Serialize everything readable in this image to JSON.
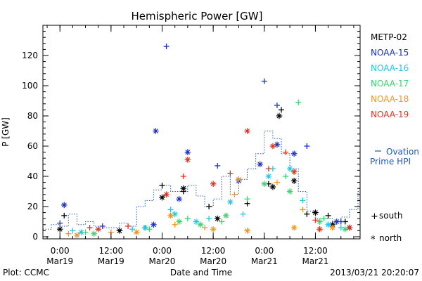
{
  "chart_data": {
    "type": "scatter",
    "title": "Hemispheric Power [GW]",
    "xlabel": "Date and Time",
    "ylabel": "P [GW]",
    "ylim": [
      0,
      140
    ],
    "xlim": [
      "2013-03-18T20:00",
      "2013-03-21T22:30"
    ],
    "x_tick_labels": [
      {
        "time": "0:00",
        "date": "Mar19",
        "at": "2013-03-19T00:00"
      },
      {
        "time": "12:00",
        "date": "Mar19",
        "at": "2013-03-19T12:00"
      },
      {
        "time": "0:00",
        "date": "Mar20",
        "at": "2013-03-20T00:00"
      },
      {
        "time": "12:00",
        "date": "Mar20",
        "at": "2013-03-20T12:00"
      },
      {
        "time": "0:00",
        "date": "Mar21",
        "at": "2013-03-21T00:00"
      },
      {
        "time": "12:00",
        "date": "Mar21",
        "at": "2013-03-21T12:00"
      }
    ],
    "y_ticks": [
      0,
      20,
      40,
      60,
      80,
      100,
      120
    ],
    "legend_position": "right",
    "series": [
      {
        "name": "METP-02",
        "color": "#000000",
        "south": [
          [
            "2013-03-19T01:00",
            14
          ],
          [
            "2013-03-19T20:00",
            6
          ],
          [
            "2013-03-20T00:00",
            34
          ],
          [
            "2013-03-20T05:00",
            30
          ],
          [
            "2013-03-20T11:00",
            20
          ],
          [
            "2013-03-20T20:00",
            22
          ],
          [
            "2013-03-21T01:00",
            35
          ],
          [
            "2013-03-21T04:00",
            84
          ],
          [
            "2013-03-21T10:00",
            15
          ],
          [
            "2013-03-21T15:00",
            14
          ],
          [
            "2013-03-21T19:00",
            10
          ]
        ],
        "north": [
          [
            "2013-03-19T00:00",
            5
          ],
          [
            "2013-03-19T14:00",
            4
          ],
          [
            "2013-03-20T00:00",
            26
          ],
          [
            "2013-03-20T05:00",
            32
          ],
          [
            "2013-03-20T13:00",
            12
          ],
          [
            "2013-03-21T02:00",
            33
          ],
          [
            "2013-03-21T03:30",
            80
          ],
          [
            "2013-03-21T07:00",
            37
          ],
          [
            "2013-03-21T12:00",
            16
          ],
          [
            "2013-03-21T16:00",
            8
          ],
          [
            "2013-03-21T20:00",
            6
          ]
        ]
      },
      {
        "name": "NOAA-15",
        "color": "#1a2fc8",
        "south": [
          [
            "2013-03-19T00:00",
            9
          ],
          [
            "2013-03-19T10:00",
            7
          ],
          [
            "2013-03-20T01:00",
            126
          ],
          [
            "2013-03-20T13:00",
            47
          ],
          [
            "2013-03-21T00:00",
            103
          ],
          [
            "2013-03-21T03:00",
            87
          ],
          [
            "2013-03-21T10:00",
            60
          ],
          [
            "2013-03-21T18:00",
            10
          ]
        ],
        "north": [
          [
            "2013-03-19T01:00",
            21
          ],
          [
            "2013-03-19T22:00",
            8
          ],
          [
            "2013-03-19T22:30",
            70
          ],
          [
            "2013-03-20T04:00",
            25
          ],
          [
            "2013-03-20T06:00",
            56
          ],
          [
            "2013-03-20T18:00",
            37
          ],
          [
            "2013-03-20T23:00",
            48
          ],
          [
            "2013-03-21T03:00",
            61
          ],
          [
            "2013-03-21T07:00",
            55
          ],
          [
            "2013-03-21T17:00",
            10
          ]
        ]
      },
      {
        "name": "NOAA-16",
        "color": "#22c8e6",
        "south": [
          [
            "2013-03-19T03:00",
            4
          ],
          [
            "2013-03-19T17:00",
            5
          ],
          [
            "2013-03-20T02:00",
            18
          ],
          [
            "2013-03-20T11:00",
            12
          ],
          [
            "2013-03-20T19:00",
            15
          ],
          [
            "2013-03-21T02:00",
            45
          ],
          [
            "2013-03-21T09:00",
            24
          ],
          [
            "2013-03-21T18:00",
            6
          ]
        ],
        "north": [
          [
            "2013-03-19T05:00",
            3
          ],
          [
            "2013-03-19T20:00",
            6
          ],
          [
            "2013-03-20T03:00",
            15
          ],
          [
            "2013-03-20T08:00",
            10
          ],
          [
            "2013-03-20T16:00",
            23
          ],
          [
            "2013-03-21T01:00",
            40
          ],
          [
            "2013-03-21T06:00",
            45
          ],
          [
            "2013-03-21T15:00",
            8
          ]
        ]
      },
      {
        "name": "NOAA-17",
        "color": "#3cd26e",
        "south": [
          [
            "2013-03-19T06:00",
            3
          ],
          [
            "2013-03-19T21:00",
            5
          ],
          [
            "2013-03-20T06:00",
            12
          ],
          [
            "2013-03-20T14:00",
            10
          ],
          [
            "2013-03-20T20:00",
            25
          ],
          [
            "2013-03-21T05:00",
            40
          ],
          [
            "2013-03-21T08:00",
            89
          ],
          [
            "2013-03-21T14:00",
            12
          ]
        ],
        "north": [
          [
            "2013-03-19T08:00",
            2
          ],
          [
            "2013-03-20T04:00",
            10
          ],
          [
            "2013-03-20T09:00",
            8
          ],
          [
            "2013-03-20T15:00",
            14
          ],
          [
            "2013-03-21T00:00",
            35
          ],
          [
            "2013-03-21T06:00",
            30
          ],
          [
            "2013-03-21T13:00",
            10
          ],
          [
            "2013-03-21T19:00",
            5
          ]
        ]
      },
      {
        "name": "NOAA-18",
        "color": "#f0961e",
        "south": [
          [
            "2013-03-19T02:00",
            2
          ],
          [
            "2013-03-19T12:00",
            3
          ],
          [
            "2013-03-20T03:00",
            8
          ],
          [
            "2013-03-20T10:00",
            6
          ],
          [
            "2013-03-20T17:00",
            28
          ],
          [
            "2013-03-21T03:00",
            36
          ],
          [
            "2013-03-21T09:00",
            18
          ]
        ],
        "north": [
          [
            "2013-03-19T04:00",
            1
          ],
          [
            "2013-03-19T18:00",
            3
          ],
          [
            "2013-03-20T02:00",
            14
          ],
          [
            "2013-03-20T12:00",
            5
          ],
          [
            "2013-03-20T18:00",
            38
          ],
          [
            "2013-03-20T20:00",
            4
          ],
          [
            "2013-03-21T07:00",
            6
          ],
          [
            "2013-03-21T16:00",
            6
          ]
        ]
      },
      {
        "name": "NOAA-19",
        "color": "#e0321e",
        "south": [
          [
            "2013-03-19T07:00",
            6
          ],
          [
            "2013-03-19T16:00",
            7
          ],
          [
            "2013-03-20T05:00",
            40
          ],
          [
            "2013-03-20T16:00",
            42
          ],
          [
            "2013-03-21T01:00",
            45
          ],
          [
            "2013-03-21T05:00",
            56
          ],
          [
            "2013-03-21T12:00",
            11
          ]
        ],
        "north": [
          [
            "2013-03-19T09:00",
            5
          ],
          [
            "2013-03-20T01:00",
            28
          ],
          [
            "2013-03-20T06:00",
            51
          ],
          [
            "2013-03-20T12:00",
            35
          ],
          [
            "2013-03-20T20:00",
            70
          ],
          [
            "2013-03-21T02:00",
            60
          ],
          [
            "2013-03-21T07:00",
            43
          ],
          [
            "2013-03-21T13:00",
            5
          ],
          [
            "2013-03-21T20:00",
            6
          ]
        ]
      }
    ],
    "ovation": {
      "name": "Ovation Prime HPI",
      "legend_line1": "Ovation",
      "legend_line2": "Prime HPI",
      "color": "#1e5ab4",
      "points": [
        [
          "2013-03-18T20:00",
          5
        ],
        [
          "2013-03-18T22:00",
          8
        ],
        [
          "2013-03-19T00:00",
          7
        ],
        [
          "2013-03-19T02:00",
          15
        ],
        [
          "2013-03-19T04:00",
          8
        ],
        [
          "2013-03-19T06:00",
          10
        ],
        [
          "2013-03-19T08:00",
          7
        ],
        [
          "2013-03-19T10:00",
          6
        ],
        [
          "2013-03-19T12:00",
          6
        ],
        [
          "2013-03-19T14:00",
          9
        ],
        [
          "2013-03-19T16:00",
          7
        ],
        [
          "2013-03-19T18:00",
          20
        ],
        [
          "2013-03-19T20:00",
          24
        ],
        [
          "2013-03-19T22:00",
          31
        ],
        [
          "2013-03-20T00:00",
          34
        ],
        [
          "2013-03-20T02:00",
          30
        ],
        [
          "2013-03-20T04:00",
          30
        ],
        [
          "2013-03-20T06:00",
          34
        ],
        [
          "2013-03-20T08:00",
          27
        ],
        [
          "2013-03-20T10:00",
          20
        ],
        [
          "2013-03-20T12:00",
          25
        ],
        [
          "2013-03-20T14:00",
          40
        ],
        [
          "2013-03-20T16:00",
          28
        ],
        [
          "2013-03-20T18:00",
          38
        ],
        [
          "2013-03-20T20:00",
          45
        ],
        [
          "2013-03-20T22:00",
          55
        ],
        [
          "2013-03-21T00:00",
          70
        ],
        [
          "2013-03-21T02:00",
          65
        ],
        [
          "2013-03-21T04:00",
          55
        ],
        [
          "2013-03-21T06:00",
          45
        ],
        [
          "2013-03-21T08:00",
          30
        ],
        [
          "2013-03-21T10:00",
          17
        ],
        [
          "2013-03-21T12:00",
          12
        ],
        [
          "2013-03-21T14:00",
          12
        ],
        [
          "2013-03-21T16:00",
          10
        ],
        [
          "2013-03-21T18:00",
          13
        ],
        [
          "2013-03-21T20:00",
          18
        ],
        [
          "2013-03-21T22:00",
          30
        ]
      ]
    },
    "marker_legend": {
      "south_symbol": "+",
      "south_label": "south",
      "north_symbol": "*",
      "north_label": "north"
    }
  },
  "footer": {
    "plot_label": "Plot: CCMC",
    "timestamp": "2013/03/21  20:20:07"
  }
}
